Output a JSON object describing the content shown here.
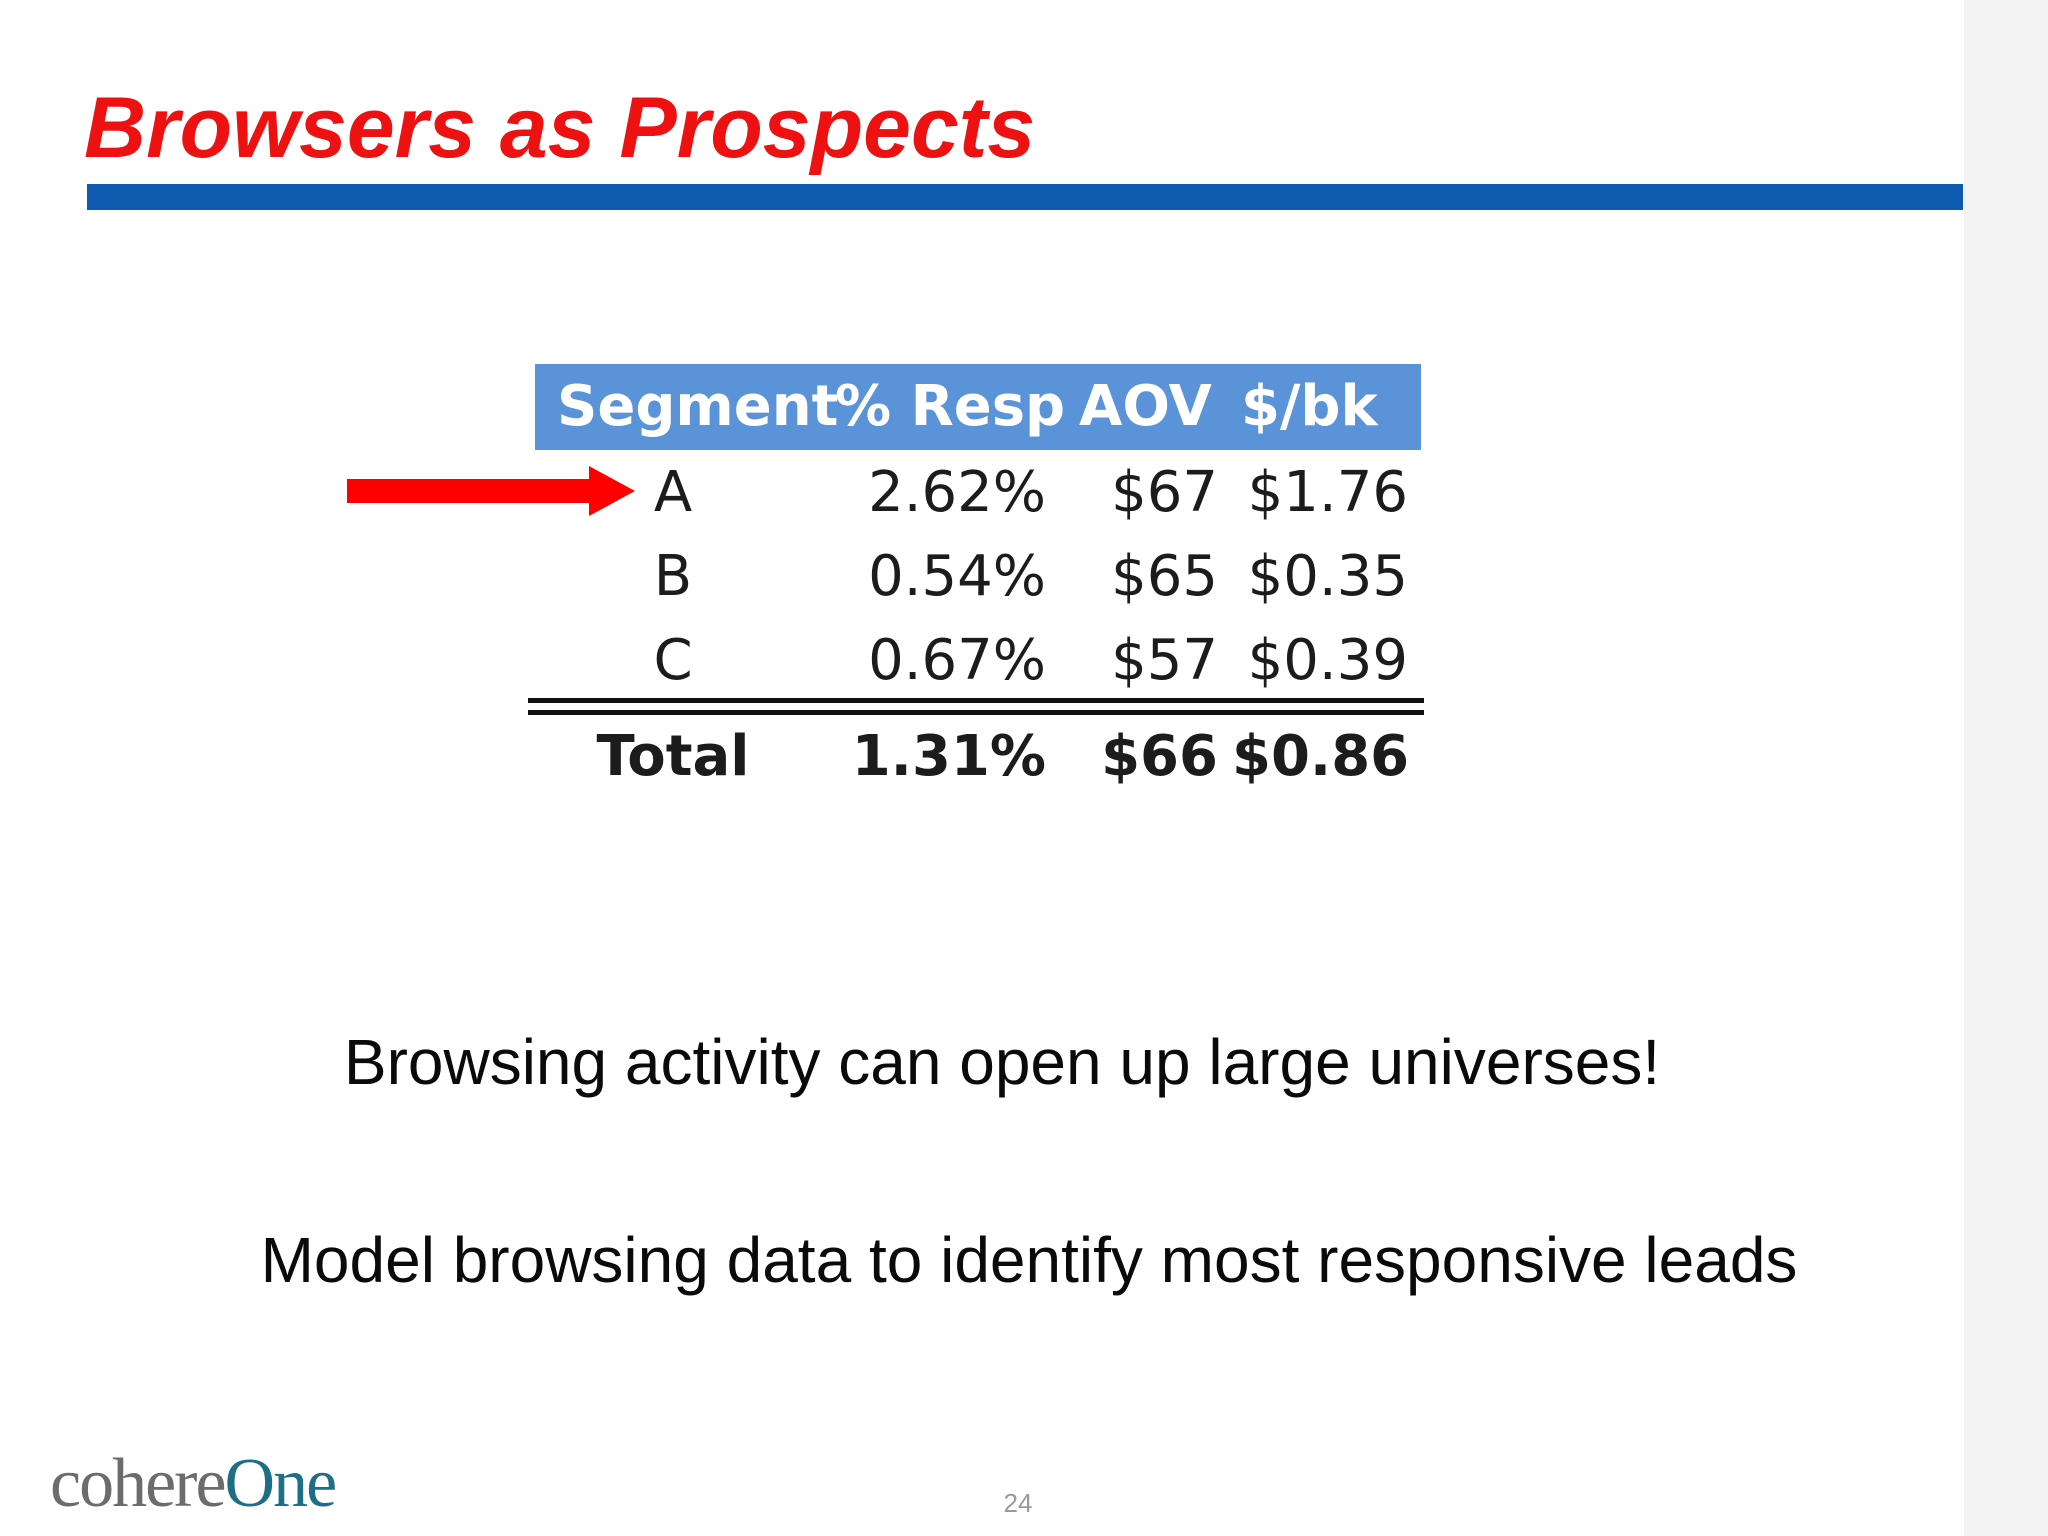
{
  "slide": {
    "title": "Browsers as Prospects",
    "page_number": "24",
    "logo": {
      "text_a": "cohere",
      "text_b": "One"
    }
  },
  "table": {
    "headers": [
      "Segment",
      "% Resp",
      "AOV",
      "$/bk"
    ],
    "rows": [
      {
        "segment": "A",
        "resp": "2.62%",
        "aov": "$67",
        "bk": "$1.76",
        "highlighted": true
      },
      {
        "segment": "B",
        "resp": "0.54%",
        "aov": "$65",
        "bk": "$0.35"
      },
      {
        "segment": "C",
        "resp": "0.67%",
        "aov": "$57",
        "bk": "$0.39"
      }
    ],
    "total": {
      "segment": "Total",
      "resp": "1.31%",
      "aov": "$66",
      "bk": "$0.86"
    }
  },
  "bullets": [
    "Browsing activity can open up large universes!",
    "Model browsing data to identify most responsive leads"
  ],
  "colors": {
    "title": "#ee1111",
    "title_rule": "#0d5aae",
    "table_header": "#5b93d9",
    "arrow": "#ff0000"
  },
  "icons": {
    "highlight_arrow": "right-arrow-icon"
  }
}
